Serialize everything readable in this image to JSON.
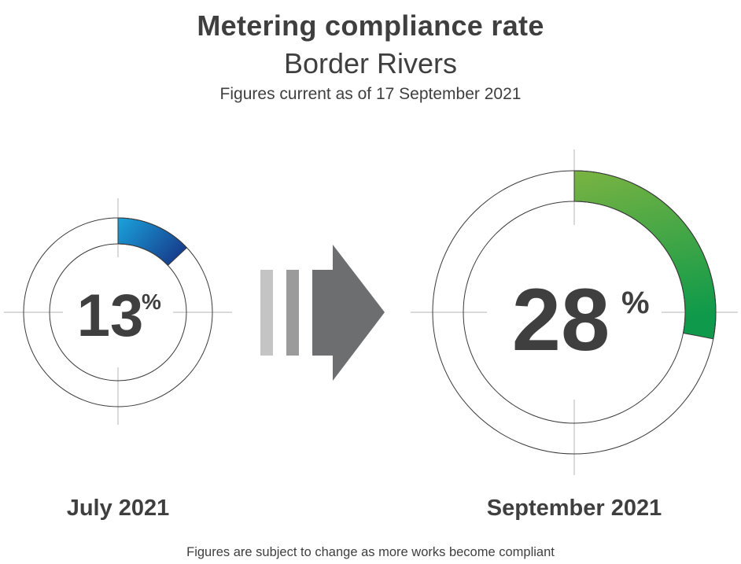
{
  "header": {
    "title": "Metering compliance rate",
    "subtitle": "Border Rivers",
    "current_as_of": "Figures current as of 17 September 2021"
  },
  "footnote": "Figures are subject to change as more works become compliant",
  "colors": {
    "text": "#3f3f3f",
    "july_gradient_start": "#1aa3dc",
    "july_gradient_end": "#173f8e",
    "september_gradient_start": "#7ab342",
    "september_gradient_end": "#0e9a4a",
    "ring_outline": "#3a3a3a",
    "crosshair": "#b5b5b5",
    "arrow_bar_light": "#c4c4c4",
    "arrow_bar_mid": "#9b9b9c",
    "arrow_head": "#6d6e70"
  },
  "icons": {
    "arrow": "right-arrow-icon"
  },
  "chart_data": [
    {
      "type": "pie",
      "label": "July 2021",
      "value": 13,
      "value_text": "13",
      "unit": "%",
      "range": [
        0,
        100
      ]
    },
    {
      "type": "pie",
      "label": "September 2021",
      "value": 28,
      "value_text": "28",
      "unit": "%",
      "range": [
        0,
        100
      ]
    }
  ]
}
